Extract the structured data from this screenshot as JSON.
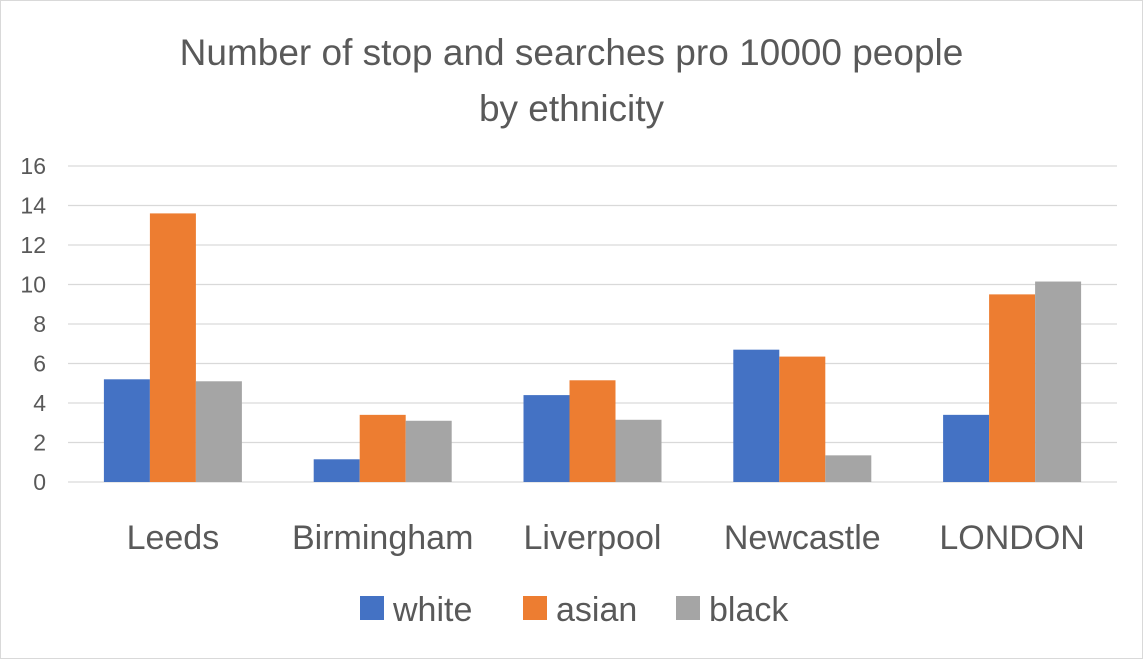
{
  "chart_data": {
    "type": "bar",
    "title_line1": "Number of stop and searches pro 10000 people",
    "title_line2": "by ethnicity",
    "categories": [
      "Leeds",
      "Birmingham",
      "Liverpool",
      "Newcastle",
      "LONDON"
    ],
    "series": [
      {
        "name": "white",
        "color": "#4472c4",
        "values": [
          5.2,
          1.15,
          4.4,
          6.7,
          3.4
        ]
      },
      {
        "name": "asian",
        "color": "#ed7d31",
        "values": [
          13.6,
          3.4,
          5.15,
          6.35,
          9.5
        ]
      },
      {
        "name": "black",
        "color": "#a5a5a5",
        "values": [
          5.1,
          3.1,
          3.15,
          1.35,
          10.15
        ]
      }
    ],
    "ylim": [
      0,
      16
    ],
    "yticks": [
      "0",
      "2",
      "4",
      "6",
      "8",
      "10",
      "12",
      "14",
      "16"
    ],
    "grid": true,
    "legend_position": "bottom"
  }
}
